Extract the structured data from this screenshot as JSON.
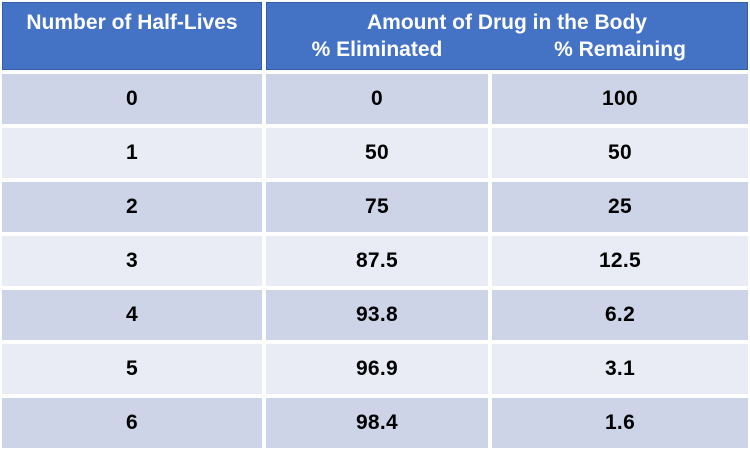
{
  "table": {
    "header": {
      "col1": "Number of Half-Lives",
      "group_title": "Amount of Drug in the Body",
      "sub_col1": "% Eliminated",
      "sub_col2": "% Remaining"
    },
    "rows": [
      {
        "half_lives": "0",
        "eliminated": "0",
        "remaining": "100"
      },
      {
        "half_lives": "1",
        "eliminated": "50",
        "remaining": "50"
      },
      {
        "half_lives": "2",
        "eliminated": "75",
        "remaining": "25"
      },
      {
        "half_lives": "3",
        "eliminated": "87.5",
        "remaining": "12.5"
      },
      {
        "half_lives": "4",
        "eliminated": "93.8",
        "remaining": "6.2"
      },
      {
        "half_lives": "5",
        "eliminated": "96.9",
        "remaining": "3.1"
      },
      {
        "half_lives": "6",
        "eliminated": "98.4",
        "remaining": "1.6"
      }
    ]
  },
  "colors": {
    "header_bg": "#4472C4",
    "header_text": "#FFFFFF",
    "band_dark": "#CED4E8",
    "band_light": "#E9EBF5",
    "gridline": "#FFFFFF",
    "data_text": "#000000"
  },
  "chart_data": {
    "type": "table",
    "title": "",
    "columns": [
      "Number of Half-Lives",
      "% Eliminated",
      "% Remaining"
    ],
    "column_group": {
      "label": "Amount of Drug in the Body",
      "spans": [
        "% Eliminated",
        "% Remaining"
      ]
    },
    "rows": [
      [
        0,
        0,
        100
      ],
      [
        1,
        50,
        50
      ],
      [
        2,
        75,
        25
      ],
      [
        3,
        87.5,
        12.5
      ],
      [
        4,
        93.8,
        6.2
      ],
      [
        5,
        96.9,
        3.1
      ],
      [
        6,
        98.4,
        1.6
      ]
    ],
    "layout": {
      "banded_rows": true,
      "header_fill": "#4472C4",
      "band_fills": [
        "#CED4E8",
        "#E9EBF5"
      ]
    }
  }
}
